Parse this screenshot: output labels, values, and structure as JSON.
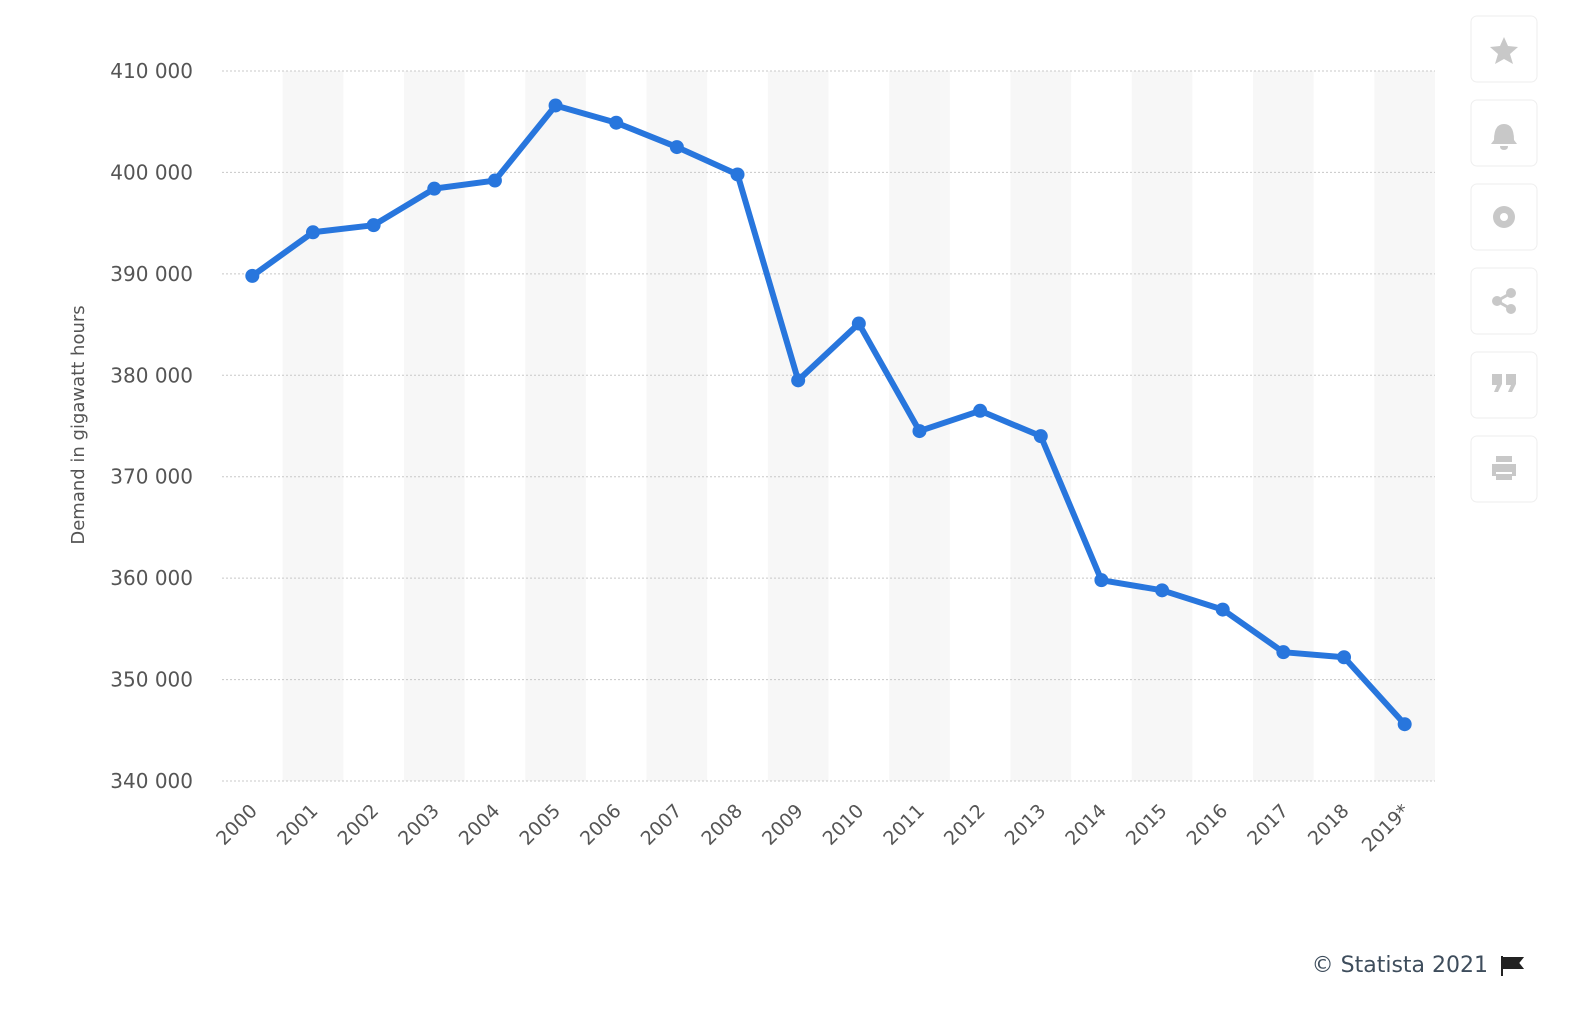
{
  "chart_data": {
    "type": "line",
    "y_label": "Demand in gigawatt hours",
    "credit": "© Statista 2021",
    "categories": [
      "2000",
      "2001",
      "2002",
      "2003",
      "2004",
      "2005",
      "2006",
      "2007",
      "2008",
      "2009",
      "2010",
      "2011",
      "2012",
      "2013",
      "2014",
      "2015",
      "2016",
      "2017",
      "2018",
      "2019*"
    ],
    "series": [
      {
        "name": "Demand",
        "color": "#2876dd",
        "values": [
          389800,
          394100,
          394800,
          398400,
          399200,
          406600,
          404900,
          402500,
          399800,
          379500,
          385100,
          374500,
          376500,
          374000,
          359800,
          358800,
          356900,
          352700,
          352200,
          345600
        ]
      }
    ],
    "ylim": [
      340000,
      410000
    ],
    "yticks": [
      {
        "value": 340000,
        "label": "340 000"
      },
      {
        "value": 350000,
        "label": "350 000"
      },
      {
        "value": 360000,
        "label": "360 000"
      },
      {
        "value": 370000,
        "label": "370 000"
      },
      {
        "value": 380000,
        "label": "380 000"
      },
      {
        "value": 390000,
        "label": "390 000"
      },
      {
        "value": 400000,
        "label": "400 000"
      },
      {
        "value": 410000,
        "label": "410 000"
      }
    ],
    "grid": true
  }
}
